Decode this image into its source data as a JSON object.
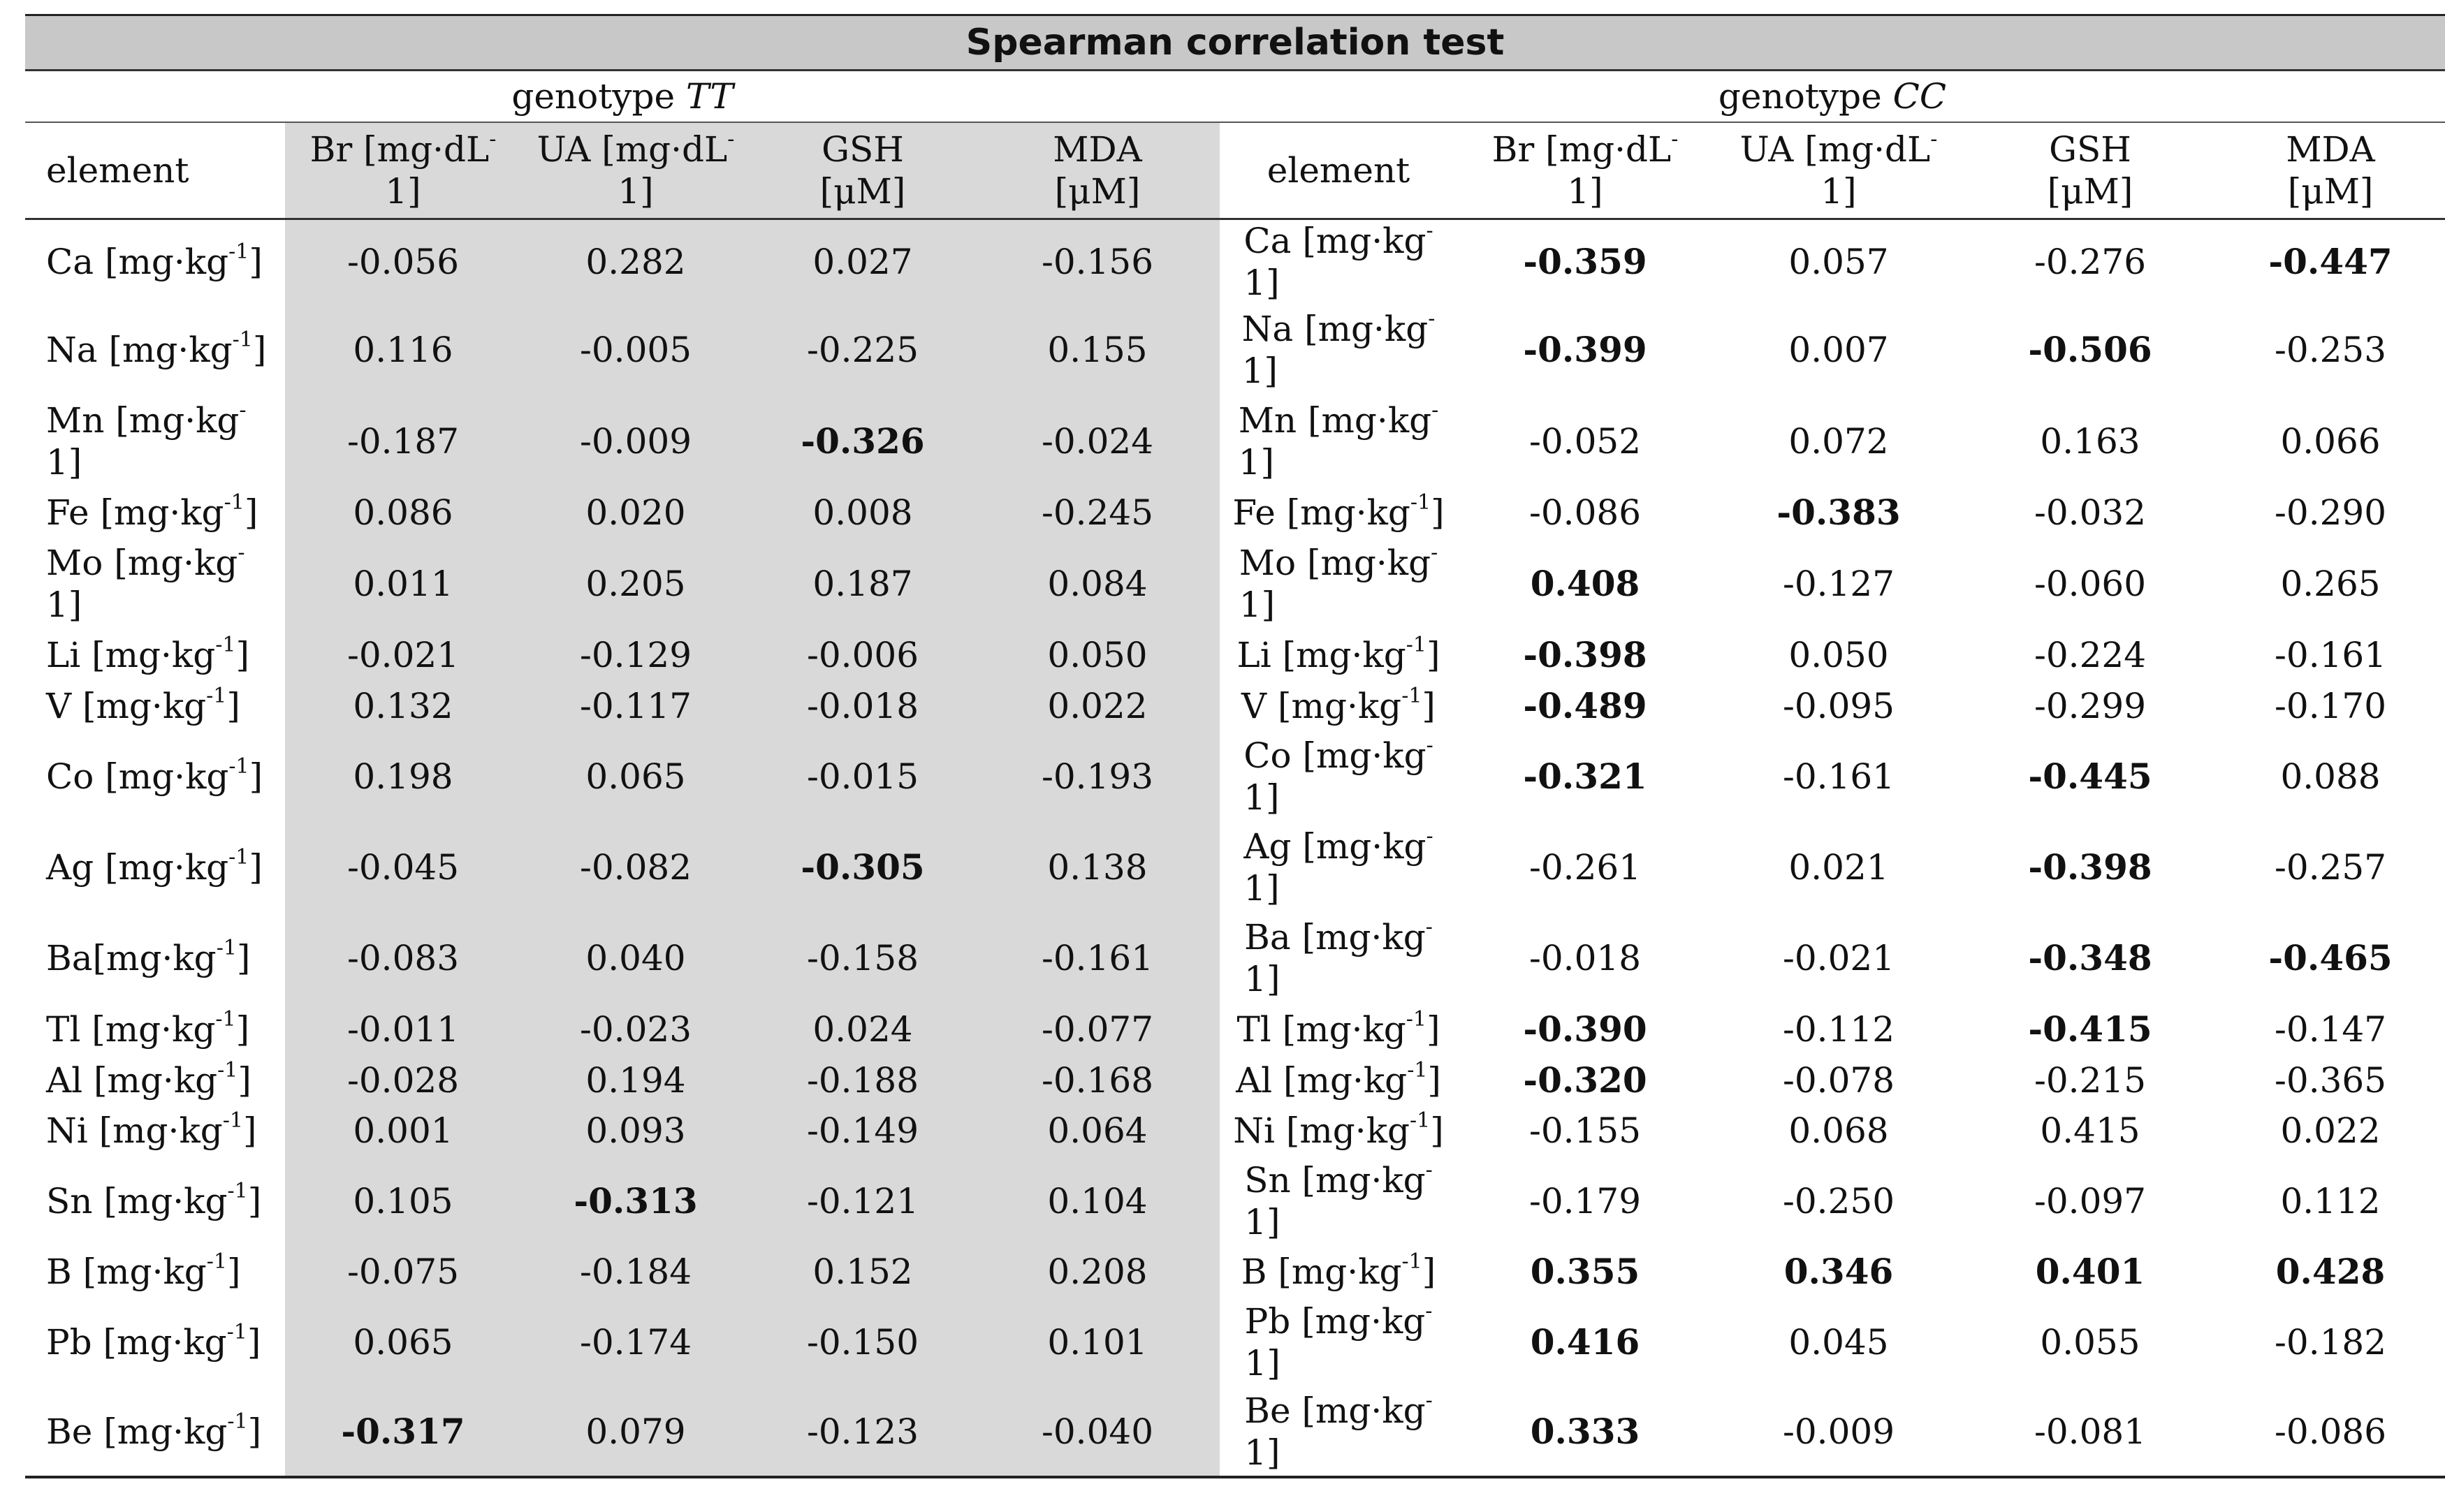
{
  "title": "Spearman correlation test",
  "genotype_left": {
    "prefix": "genotype ",
    "name": "TT"
  },
  "genotype_right": {
    "prefix": "genotype ",
    "name": "CC"
  },
  "headers": {
    "element": "element",
    "br": [
      "Br [mg·dL",
      "-",
      "1]"
    ],
    "ua_left": [
      "UA [mg·dL",
      "-",
      "1]"
    ],
    "ua_right": [
      "UA  [mg·dL",
      "-",
      "1]"
    ],
    "gsh": [
      "GSH",
      "[μM]"
    ],
    "mda": [
      "MDA",
      "[μM]"
    ]
  },
  "rows": [
    {
      "left": {
        "el": "Ca [mg·kg",
        "sup": "-1",
        "tail": "]",
        "wrap": false
      },
      "right": {
        "el": "Ca [mg·kg",
        "sup": "-",
        "tail": "1]",
        "wrap": true
      },
      "tt": [
        "-0.056",
        "0.282",
        "0.027",
        "-0.156"
      ],
      "tt_bold": [
        false,
        false,
        false,
        false
      ],
      "cc": [
        "-0.359",
        "0.057",
        "-0.276",
        "-0.447"
      ],
      "cc_bold": [
        true,
        false,
        false,
        true
      ],
      "h": 120
    },
    {
      "left": {
        "el": "Na [mg·kg",
        "sup": "-1",
        "tail": "]",
        "wrap": false
      },
      "right": {
        "el": "Na [mg·kg",
        "sup": "-",
        "tail": "1]",
        "wrap": true
      },
      "tt": [
        "0.116",
        "-0.005",
        "-0.225",
        "0.155"
      ],
      "tt_bold": [
        false,
        false,
        false,
        false
      ],
      "cc": [
        "-0.399",
        "0.007",
        "-0.506",
        "-0.253"
      ],
      "cc_bold": [
        true,
        false,
        true,
        false
      ],
      "h": 132
    },
    {
      "left": {
        "el": "Mn [mg·kg",
        "sup": "-",
        "tail": "1]",
        "wrap": true
      },
      "right": {
        "el": "Mn [mg·kg",
        "sup": "-",
        "tail": "1]",
        "wrap": true
      },
      "tt": [
        "-0.187",
        "-0.009",
        "-0.326",
        "-0.024"
      ],
      "tt_bold": [
        false,
        false,
        true,
        false
      ],
      "cc": [
        "-0.052",
        "0.072",
        "0.163",
        "0.066"
      ],
      "cc_bold": [
        false,
        false,
        false,
        false
      ],
      "h": 130
    },
    {
      "left": {
        "el": "Fe [mg·kg",
        "sup": "-1",
        "tail": "]",
        "wrap": false
      },
      "right": {
        "el": "Fe [mg·kg",
        "sup": "-1",
        "tail": "]",
        "wrap": false
      },
      "tt": [
        "0.086",
        "0.020",
        "0.008",
        "-0.245"
      ],
      "tt_bold": [
        false,
        false,
        false,
        false
      ],
      "cc": [
        "-0.086",
        "-0.383",
        "-0.032",
        "-0.290"
      ],
      "cc_bold": [
        false,
        true,
        false,
        false
      ],
      "h": 74
    },
    {
      "left": {
        "el": "Mo [mg·kg",
        "sup": "-",
        "tail": "1]",
        "wrap": true
      },
      "right": {
        "el": "Mo [mg·kg",
        "sup": "-",
        "tail": "1]",
        "wrap": true
      },
      "tt": [
        "0.011",
        "0.205",
        "0.187",
        "0.084"
      ],
      "tt_bold": [
        false,
        false,
        false,
        false
      ],
      "cc": [
        "0.408",
        "-0.127",
        "-0.060",
        "0.265"
      ],
      "cc_bold": [
        true,
        false,
        false,
        false
      ],
      "h": 130
    },
    {
      "left": {
        "el": "Li [mg·kg",
        "sup": "-1",
        "tail": "]",
        "wrap": false
      },
      "right": {
        "el": "Li [mg·kg",
        "sup": "-1",
        "tail": "]",
        "wrap": false
      },
      "tt": [
        "-0.021",
        "-0.129",
        "-0.006",
        "0.050"
      ],
      "tt_bold": [
        false,
        false,
        false,
        false
      ],
      "cc": [
        "-0.398",
        "0.050",
        "-0.224",
        "-0.161"
      ],
      "cc_bold": [
        true,
        false,
        false,
        false
      ],
      "h": 74
    },
    {
      "left": {
        "el": "V [mg·kg",
        "sup": "-1",
        "tail": "]",
        "wrap": false
      },
      "right": {
        "el": "V [mg·kg",
        "sup": "-1",
        "tail": "]",
        "wrap": false
      },
      "tt": [
        "0.132",
        "-0.117",
        "-0.018",
        "0.022"
      ],
      "tt_bold": [
        false,
        false,
        false,
        false
      ],
      "cc": [
        "-0.489",
        "-0.095",
        "-0.299",
        "-0.170"
      ],
      "cc_bold": [
        true,
        false,
        false,
        false
      ],
      "h": 72
    },
    {
      "left": {
        "el": "Co [mg·kg",
        "sup": "-1",
        "tail": "]",
        "wrap": false
      },
      "right": {
        "el": "Co [mg·kg",
        "sup": "-",
        "tail": "1]",
        "wrap": true
      },
      "tt": [
        "0.198",
        "0.065",
        "-0.015",
        "-0.193"
      ],
      "tt_bold": [
        false,
        false,
        false,
        false
      ],
      "cc": [
        "-0.321",
        "-0.161",
        "-0.445",
        "0.088"
      ],
      "cc_bold": [
        true,
        false,
        true,
        false
      ],
      "h": 130
    },
    {
      "left": {
        "el": "Ag [mg·kg",
        "sup": "-1",
        "tail": "]",
        "wrap": false
      },
      "right": {
        "el": "Ag [mg·kg",
        "sup": "-",
        "tail": "1]",
        "wrap": true
      },
      "tt": [
        "-0.045",
        "-0.082",
        "-0.305",
        "0.138"
      ],
      "tt_bold": [
        false,
        false,
        true,
        false
      ],
      "cc": [
        "-0.261",
        "0.021",
        "-0.398",
        "-0.257"
      ],
      "cc_bold": [
        false,
        false,
        true,
        false
      ],
      "h": 130
    },
    {
      "left": {
        "el": "Ba[mg·kg",
        "sup": "-1",
        "tail": "]",
        "wrap": false
      },
      "right": {
        "el": "Ba [mg·kg",
        "sup": "-",
        "tail": "1]",
        "wrap": true
      },
      "tt": [
        "-0.083",
        "0.040",
        "-0.158",
        "-0.161"
      ],
      "tt_bold": [
        false,
        false,
        false,
        false
      ],
      "cc": [
        "-0.018",
        "-0.021",
        "-0.348",
        "-0.465"
      ],
      "cc_bold": [
        false,
        false,
        true,
        true
      ],
      "h": 130
    },
    {
      "left": {
        "el": "Tl [mg·kg",
        "sup": "-1",
        "tail": "]",
        "wrap": false
      },
      "right": {
        "el": "Tl [mg·kg",
        "sup": "-1",
        "tail": "]",
        "wrap": false
      },
      "tt": [
        "-0.011",
        "-0.023",
        "0.024",
        "-0.077"
      ],
      "tt_bold": [
        false,
        false,
        false,
        false
      ],
      "cc": [
        "-0.390",
        "-0.112",
        "-0.415",
        "-0.147"
      ],
      "cc_bold": [
        true,
        false,
        true,
        false
      ],
      "h": 74
    },
    {
      "left": {
        "el": "Al [mg·kg",
        "sup": "-1",
        "tail": "]",
        "wrap": false
      },
      "right": {
        "el": "Al [mg·kg",
        "sup": "-1",
        "tail": "]",
        "wrap": false
      },
      "tt": [
        "-0.028",
        "0.194",
        "-0.188",
        "-0.168"
      ],
      "tt_bold": [
        false,
        false,
        false,
        false
      ],
      "cc": [
        "-0.320",
        "-0.078",
        "-0.215",
        "-0.365"
      ],
      "cc_bold": [
        true,
        false,
        false,
        false
      ],
      "h": 72
    },
    {
      "left": {
        "el": "Ni [mg·kg",
        "sup": "-1",
        "tail": "]",
        "wrap": false
      },
      "right": {
        "el": "Ni [mg·kg",
        "sup": "-1",
        "tail": "]",
        "wrap": false
      },
      "tt": [
        "0.001",
        "0.093",
        "-0.149",
        "0.064"
      ],
      "tt_bold": [
        false,
        false,
        false,
        false
      ],
      "cc": [
        "-0.155",
        "0.068",
        "0.415",
        "0.022"
      ],
      "cc_bold": [
        false,
        false,
        false,
        false
      ],
      "h": 72
    },
    {
      "left": {
        "el": "Sn [mg·kg",
        "sup": "-1",
        "tail": "]",
        "wrap": false
      },
      "right": {
        "el": "Sn [mg·kg",
        "sup": "-",
        "tail": "1]",
        "wrap": true
      },
      "tt": [
        "0.105",
        "-0.313",
        "-0.121",
        "0.104"
      ],
      "tt_bold": [
        false,
        true,
        false,
        false
      ],
      "cc": [
        "-0.179",
        "-0.250",
        "-0.097",
        "0.112"
      ],
      "cc_bold": [
        false,
        false,
        false,
        false
      ],
      "h": 130
    },
    {
      "left": {
        "el": "B [mg·kg",
        "sup": "-1",
        "tail": "]",
        "wrap": false
      },
      "right": {
        "el": "B [mg·kg",
        "sup": "-1",
        "tail": "]",
        "wrap": false
      },
      "tt": [
        "-0.075",
        "-0.184",
        "0.152",
        "0.208"
      ],
      "tt_bold": [
        false,
        false,
        false,
        false
      ],
      "cc": [
        "0.355",
        "0.346",
        "0.401",
        "0.428"
      ],
      "cc_bold": [
        true,
        true,
        true,
        true
      ],
      "h": 72
    },
    {
      "left": {
        "el": "Pb [mg·kg",
        "sup": "-1",
        "tail": "]",
        "wrap": false
      },
      "right": {
        "el": "Pb [mg·kg",
        "sup": "-",
        "tail": "1]",
        "wrap": true
      },
      "tt": [
        "0.065",
        "-0.174",
        "-0.150",
        "0.101"
      ],
      "tt_bold": [
        false,
        false,
        false,
        false
      ],
      "cc": [
        "0.416",
        "0.045",
        "0.055",
        "-0.182"
      ],
      "cc_bold": [
        true,
        false,
        false,
        false
      ],
      "h": 130
    },
    {
      "left": {
        "el": "Be [mg·kg",
        "sup": "-1",
        "tail": "]",
        "wrap": false
      },
      "right": {
        "el": "Be [mg·kg",
        "sup": "-",
        "tail": "1]",
        "wrap": true
      },
      "tt": [
        "-0.317",
        "0.079",
        "-0.123",
        "-0.040"
      ],
      "tt_bold": [
        true,
        false,
        false,
        false
      ],
      "cc": [
        "0.333",
        "-0.009",
        "-0.081",
        "-0.086"
      ],
      "cc_bold": [
        true,
        false,
        false,
        false
      ],
      "h": 128
    }
  ]
}
